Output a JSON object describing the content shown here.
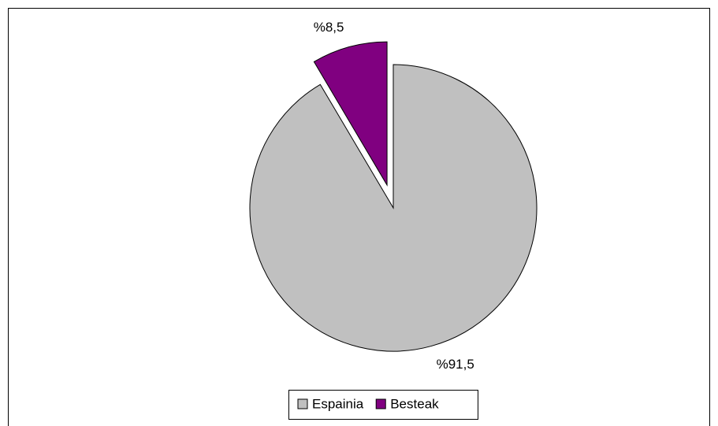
{
  "chart_data": {
    "type": "pie",
    "categories": [
      "Espainia",
      "Besteak"
    ],
    "values": [
      91.5,
      8.5
    ],
    "value_labels": [
      "%91,5",
      "%8,5"
    ],
    "colors": [
      "#c0c0c0",
      "#800080"
    ],
    "explode": [
      false,
      true
    ],
    "legend": "bottom"
  }
}
